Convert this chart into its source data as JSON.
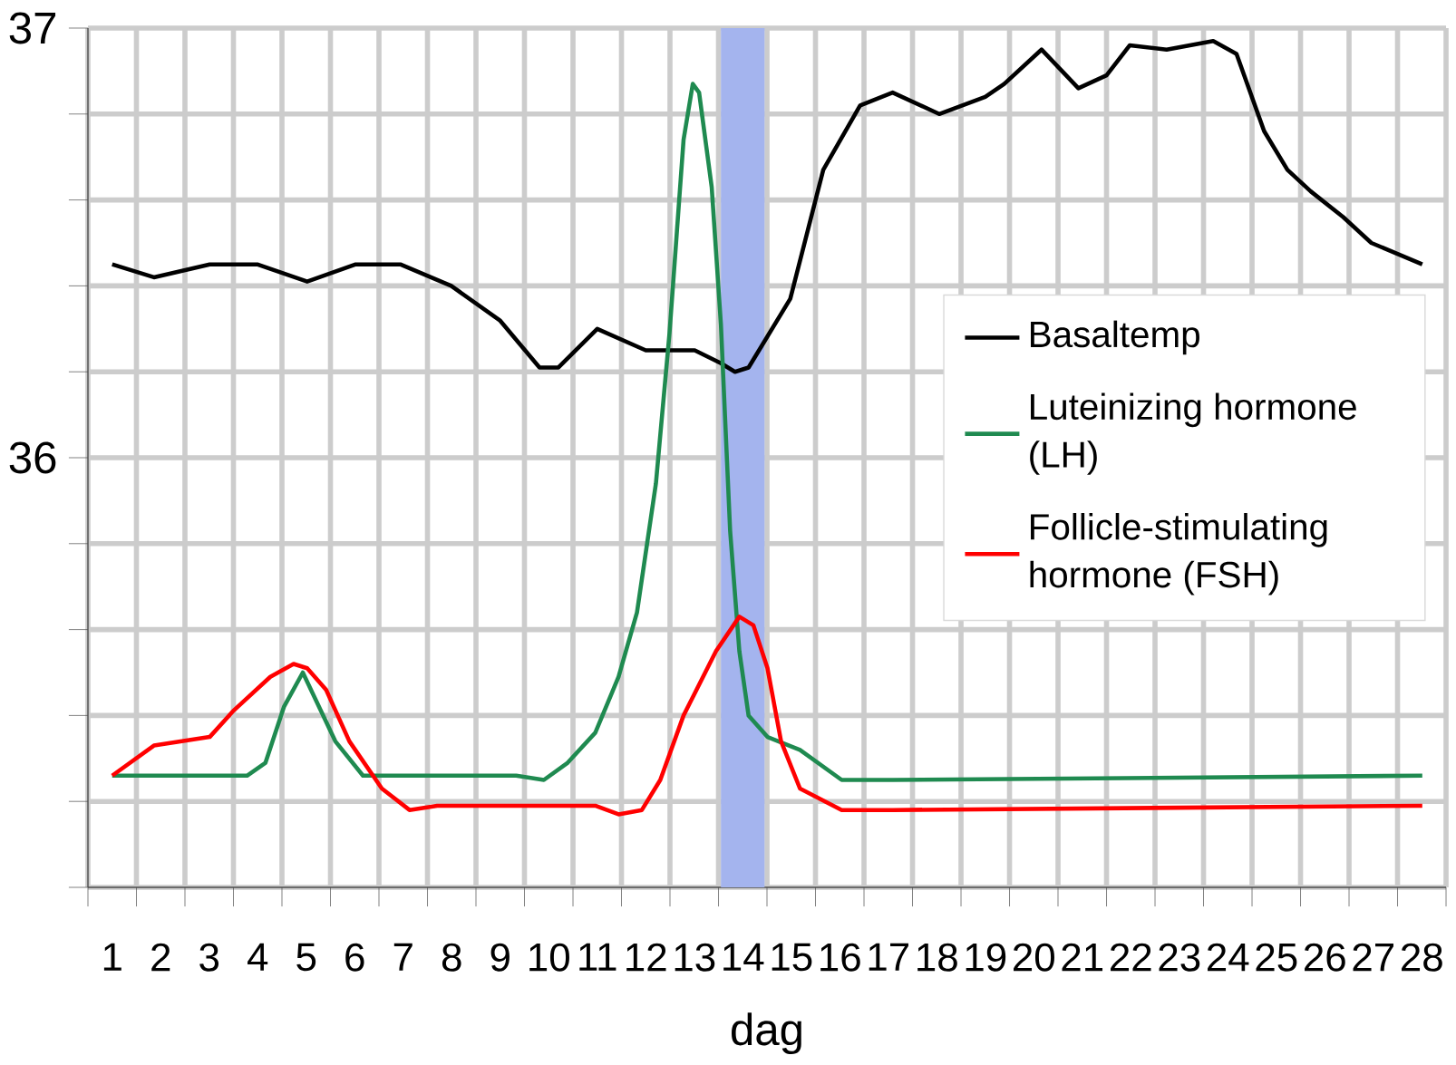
{
  "chart_data": {
    "type": "line",
    "xlabel": "dag",
    "xlim": [
      0.5,
      28.5
    ],
    "ylim": [
      35,
      37
    ],
    "xticks": [
      {
        "value": 0.5,
        "label": null
      },
      {
        "value": 1.5,
        "label": null
      },
      {
        "value": 2.5,
        "label": null
      },
      {
        "value": 3.5,
        "label": null
      },
      {
        "value": 4.5,
        "label": null
      },
      {
        "value": 5.5,
        "label": null
      },
      {
        "value": 6.5,
        "label": null
      },
      {
        "value": 7.5,
        "label": null
      },
      {
        "value": 8.5,
        "label": null
      },
      {
        "value": 9.5,
        "label": null
      },
      {
        "value": 10.5,
        "label": null
      },
      {
        "value": 11.5,
        "label": null
      },
      {
        "value": 12.5,
        "label": null
      },
      {
        "value": 13.5,
        "label": null
      },
      {
        "value": 14.5,
        "label": null
      },
      {
        "value": 15.5,
        "label": null
      },
      {
        "value": 16.5,
        "label": null
      },
      {
        "value": 17.5,
        "label": null
      },
      {
        "value": 18.5,
        "label": null
      },
      {
        "value": 19.5,
        "label": null
      },
      {
        "value": 20.5,
        "label": null
      },
      {
        "value": 21.5,
        "label": null
      },
      {
        "value": 22.5,
        "label": null
      },
      {
        "value": 23.5,
        "label": null
      },
      {
        "value": 24.5,
        "label": null
      },
      {
        "value": 25.5,
        "label": null
      },
      {
        "value": 26.5,
        "label": null
      },
      {
        "value": 27.5,
        "label": null
      },
      {
        "value": 28.5,
        "label": null
      },
      1,
      2,
      3,
      4,
      5,
      6,
      7,
      8,
      9,
      10,
      11,
      12,
      13,
      14,
      15,
      16,
      17,
      18,
      19,
      20,
      21,
      22,
      23,
      24,
      25,
      26,
      27,
      28
    ],
    "yticks": [
      {
        "value": 35,
        "label": null
      },
      {
        "value": 35.2,
        "label": null
      },
      {
        "value": 35.4,
        "label": null
      },
      {
        "value": 35.6,
        "label": null
      },
      {
        "value": 35.8,
        "label": null
      },
      36,
      {
        "value": 36.2,
        "label": null
      },
      {
        "value": 36.4,
        "label": null
      },
      {
        "value": 36.6,
        "label": null
      },
      {
        "value": 36.8,
        "label": null
      },
      37
    ],
    "grid": true,
    "legend": "right",
    "marker": "none",
    "line_style": "solid",
    "bands": [
      {
        "axis": "x",
        "from": 13.55,
        "to": 14.45,
        "color": "#a4b4ee"
      }
    ],
    "series": [
      {
        "name": "Basaltemp",
        "color": "#000000",
        "x": [
          1,
          1.86,
          3.01,
          3.99,
          5.02,
          6.02,
          6.94,
          7.99,
          8.99,
          9.81,
          10.2,
          11.0,
          12.0,
          13.01,
          13.55,
          13.84,
          14.12,
          14.98,
          15.66,
          16.42,
          17.09,
          18.05,
          19.0,
          19.39,
          20.16,
          20.92,
          21.5,
          21.98,
          22.74,
          23.22,
          23.7,
          24.18,
          24.75,
          25.23,
          25.71,
          26.38,
          26.96,
          28.01
        ],
        "values": [
          36.45,
          36.42,
          36.45,
          36.45,
          36.41,
          36.45,
          36.45,
          36.4,
          36.32,
          36.21,
          36.21,
          36.3,
          36.25,
          36.25,
          36.22,
          36.2,
          36.21,
          36.37,
          36.67,
          36.82,
          36.85,
          36.8,
          36.84,
          36.87,
          36.95,
          36.86,
          36.89,
          36.96,
          36.95,
          36.96,
          36.97,
          36.94,
          36.76,
          36.67,
          36.62,
          36.56,
          36.5,
          36.45
        ]
      },
      {
        "name": "Luteinizing hormone (LH)",
        "color": "#1f8a50",
        "x": [
          1,
          3.78,
          4.16,
          4.54,
          4.93,
          5.6,
          6.17,
          9.33,
          9.9,
          10.39,
          10.96,
          11.44,
          11.82,
          12.21,
          12.49,
          12.78,
          12.97,
          13.1,
          13.36,
          13.55,
          13.74,
          13.93,
          14.12,
          14.51,
          15.18,
          16.04,
          17.09,
          28.01
        ],
        "values": [
          35.26,
          35.26,
          35.29,
          35.42,
          35.5,
          35.34,
          35.26,
          35.26,
          35.25,
          35.29,
          35.36,
          35.49,
          35.64,
          35.94,
          36.29,
          36.74,
          36.87,
          36.85,
          36.63,
          36.31,
          35.83,
          35.55,
          35.4,
          35.35,
          35.32,
          35.25,
          35.25,
          35.26
        ]
      },
      {
        "name": "Follicle-stimulating hormone (FSH)",
        "color": "#ff0000",
        "x": [
          1,
          1.86,
          3.01,
          3.49,
          4.26,
          4.74,
          5.02,
          5.41,
          5.89,
          6.56,
          7.13,
          7.7,
          10.96,
          11.44,
          11.92,
          12.3,
          12.78,
          13.45,
          13.93,
          14.22,
          14.51,
          14.79,
          15.18,
          16.04,
          17.09,
          28.01
        ],
        "values": [
          35.26,
          35.33,
          35.35,
          35.41,
          35.49,
          35.52,
          35.51,
          35.46,
          35.34,
          35.23,
          35.18,
          35.19,
          35.19,
          35.17,
          35.18,
          35.25,
          35.4,
          35.55,
          35.63,
          35.61,
          35.51,
          35.34,
          35.23,
          35.18,
          35.18,
          35.19
        ]
      }
    ]
  }
}
